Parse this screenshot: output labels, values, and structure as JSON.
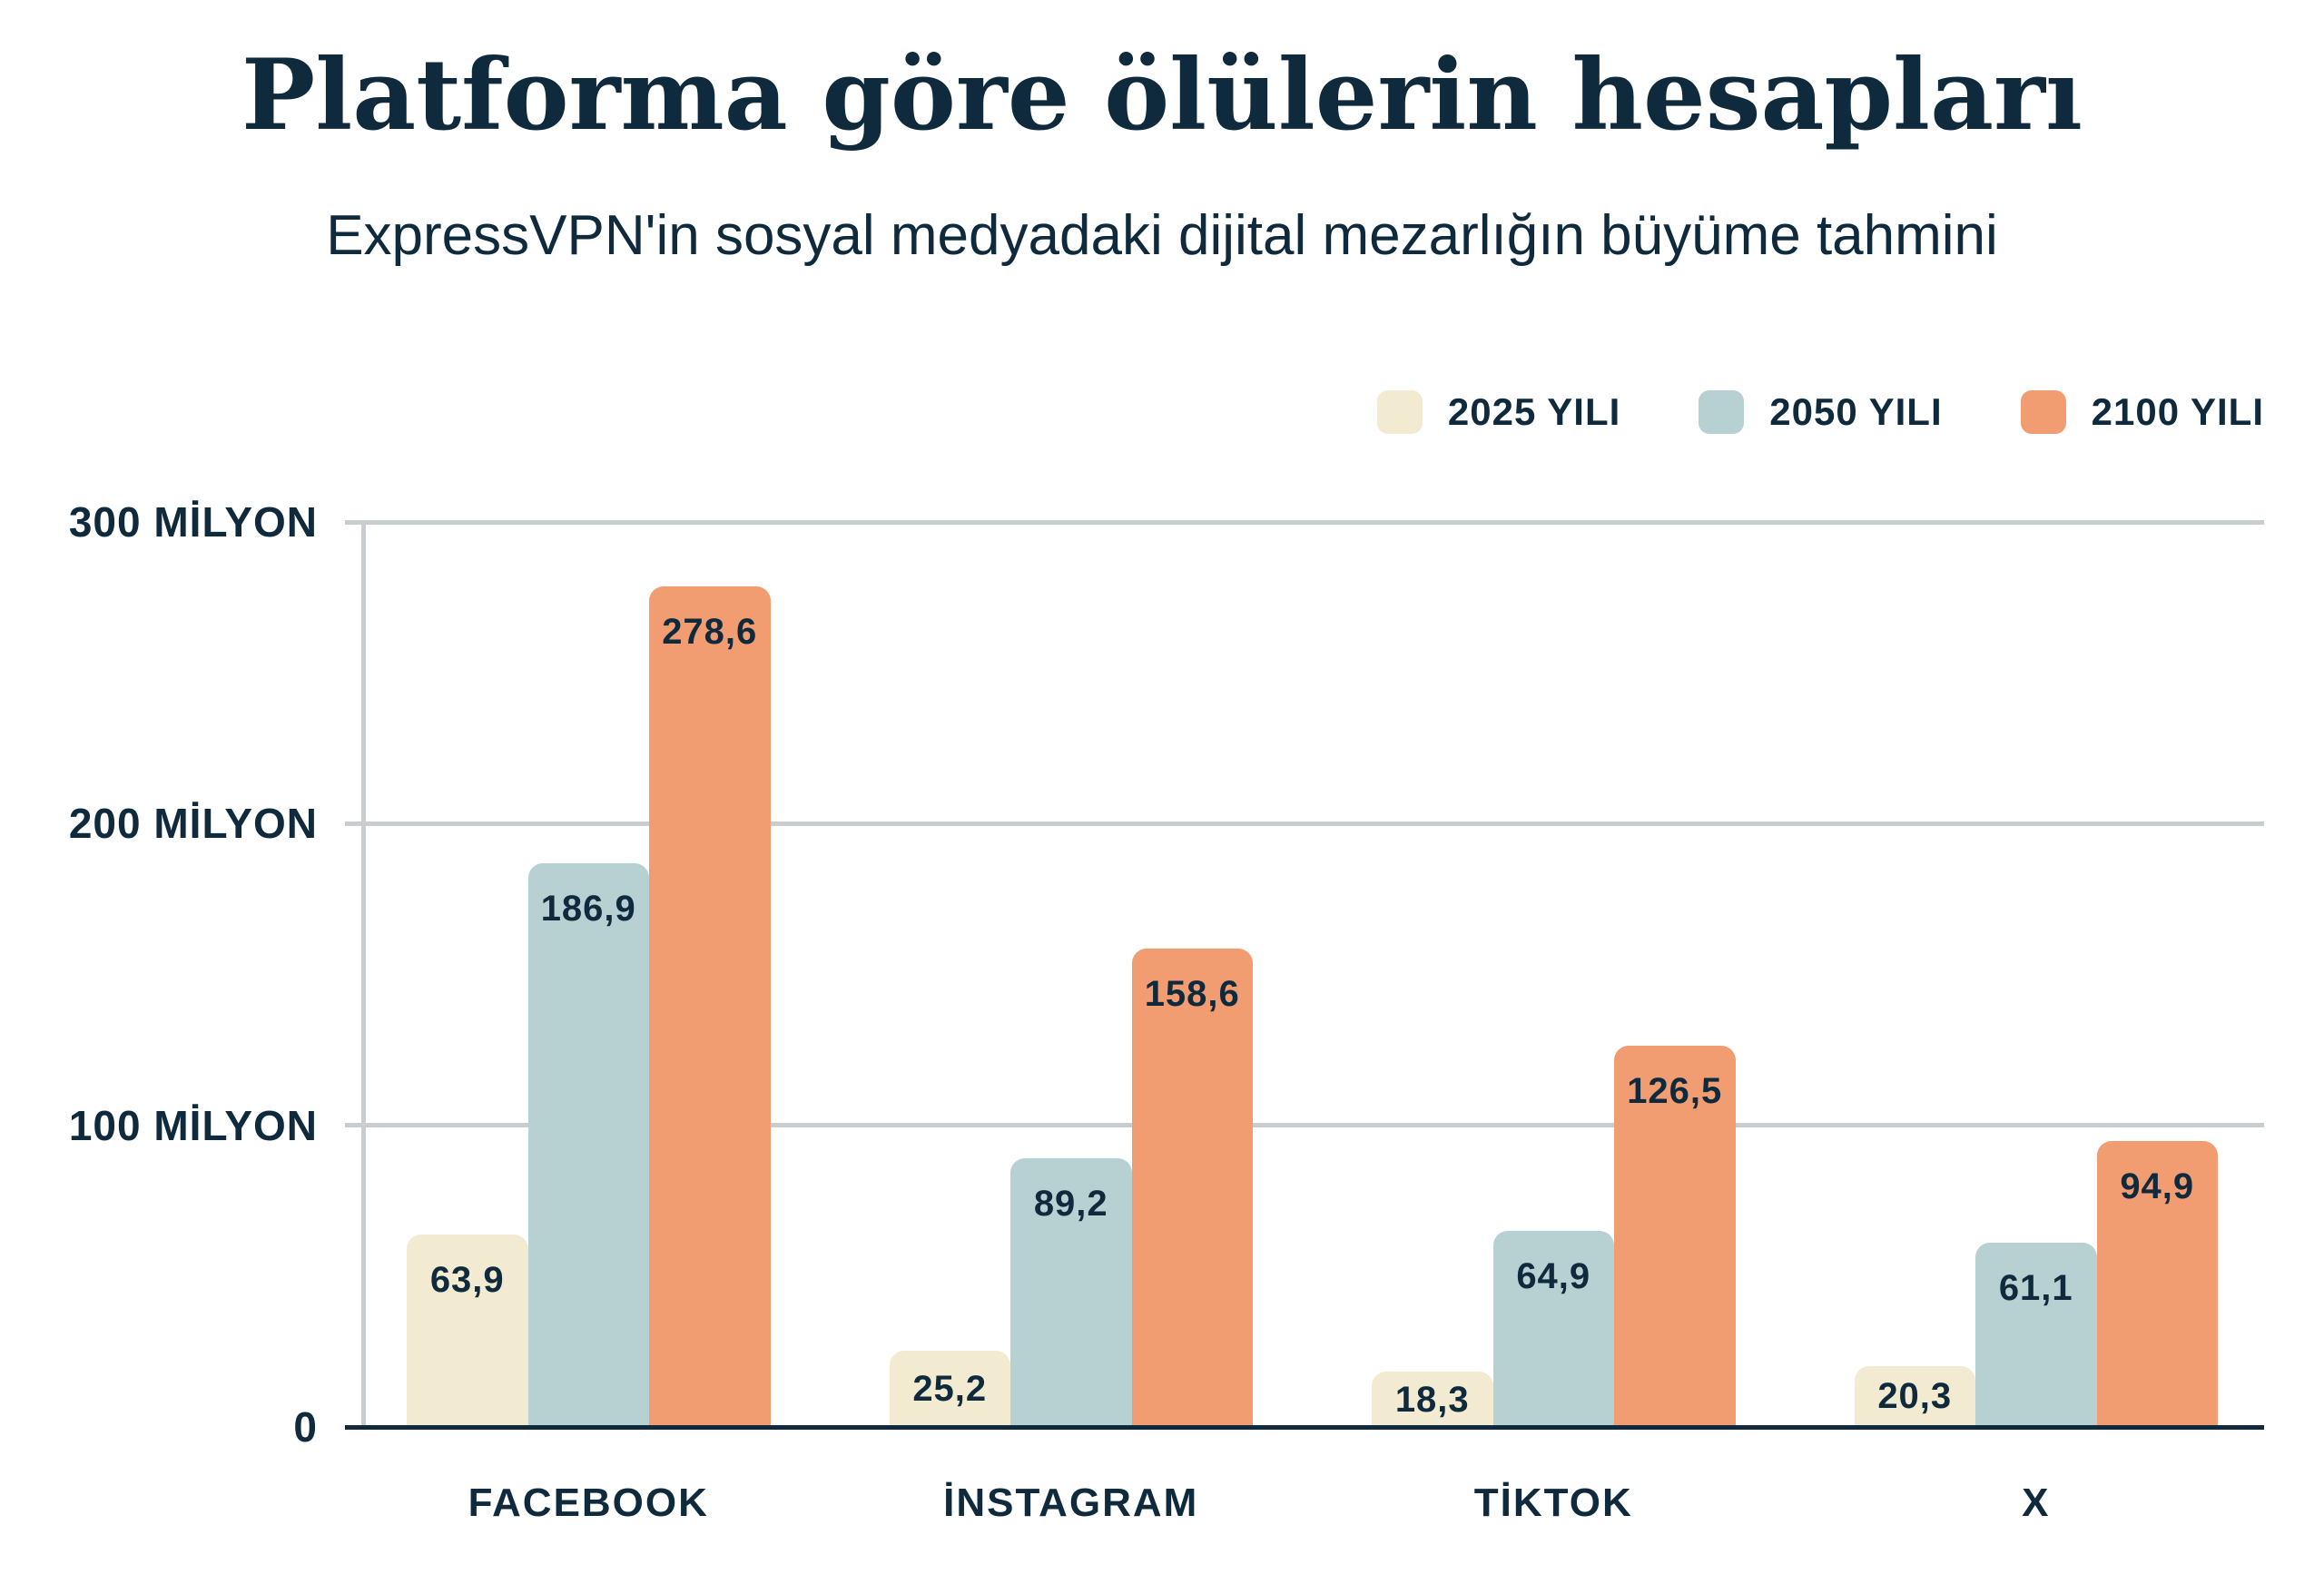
{
  "chart_data": {
    "type": "bar",
    "title": "Platforma göre ölülerin hesapları",
    "subtitle": "ExpressVPN'in sosyal medyadaki dijital mezarlığın büyüme tahmini",
    "categories": [
      "FACEBOOK",
      "İNSTAGRAM",
      "TİKTOK",
      "X"
    ],
    "series": [
      {
        "name": "2025 YILI",
        "color": "#F2EBD2",
        "values": [
          63.9,
          25.2,
          18.3,
          20.3
        ],
        "labels": [
          "63,9",
          "25,2",
          "18,3",
          "20,3"
        ]
      },
      {
        "name": "2050 YILI",
        "color": "#B7D1D2",
        "values": [
          186.9,
          89.2,
          64.9,
          61.1
        ],
        "labels": [
          "186,9",
          "89,2",
          "64,9",
          "61,1"
        ]
      },
      {
        "name": "2100 YILI",
        "color": "#F29C72",
        "values": [
          278.6,
          158.6,
          126.5,
          94.9
        ],
        "labels": [
          "278,6",
          "158,6",
          "126,5",
          "94,9"
        ]
      }
    ],
    "y_axis": {
      "unit": "MİLYON",
      "ticks": [
        {
          "value": 300,
          "label": "300 MİLYON"
        },
        {
          "value": 200,
          "label": "200 MİLYON"
        },
        {
          "value": 100,
          "label": "100 MİLYON"
        },
        {
          "value": 0,
          "label": "0"
        }
      ]
    },
    "ylim": [
      0,
      300
    ],
    "grid": true,
    "legend_position": "top-right"
  },
  "colors": {
    "background": "#FFFFFF",
    "text": "#0E2A3C",
    "grid": "#C9CDD0",
    "axis_line": "#0E2A3C",
    "series_2025": "#F2EBD2",
    "series_2050": "#B7D1D2",
    "series_2100": "#F29C72"
  }
}
